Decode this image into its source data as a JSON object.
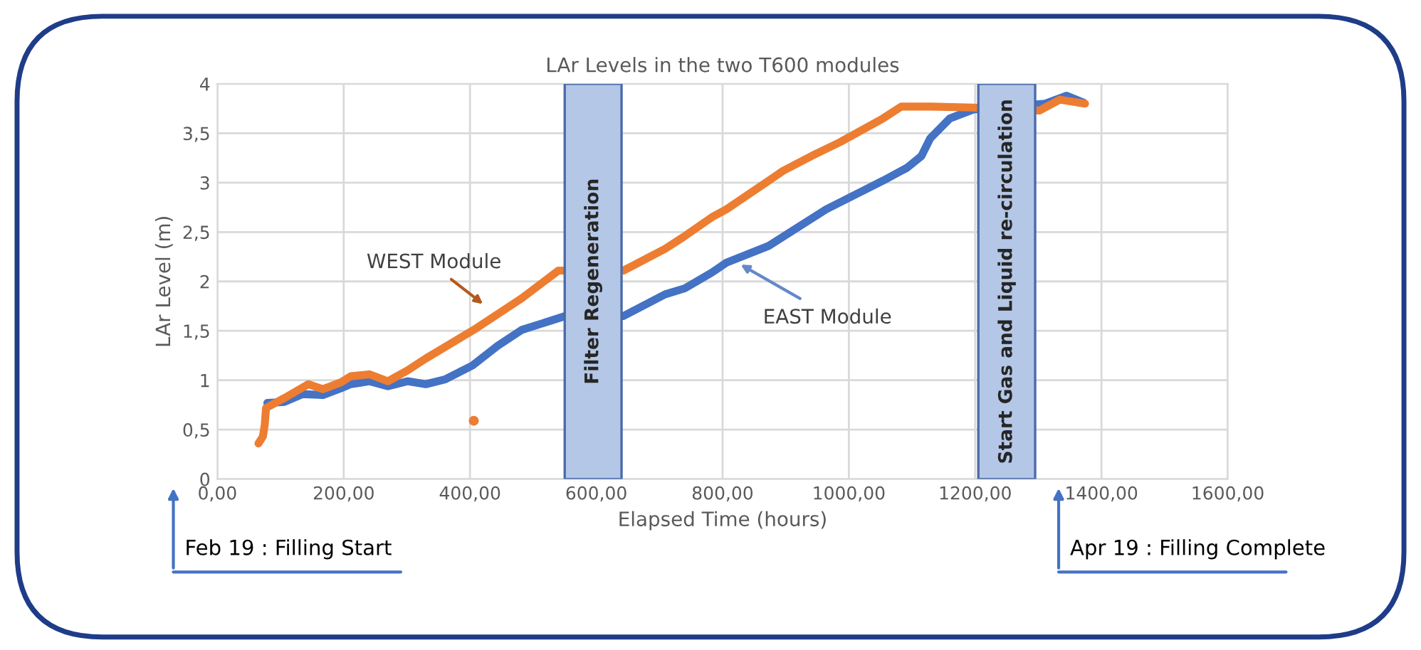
{
  "chart_data": {
    "type": "line",
    "title": "LAr Levels in the two T600 modules",
    "xlabel": "Elapsed Time (hours)",
    "ylabel": "LAr Level (m)",
    "xlim": [
      0,
      1600
    ],
    "ylim": [
      0,
      4
    ],
    "xticks": [
      {
        "value": 0,
        "label": "0,00"
      },
      {
        "value": 200,
        "label": "200,00"
      },
      {
        "value": 400,
        "label": "400,00"
      },
      {
        "value": 600,
        "label": "600,00"
      },
      {
        "value": 800,
        "label": "800,00"
      },
      {
        "value": 1000,
        "label": "1000,00"
      },
      {
        "value": 1200,
        "label": "1200,00"
      },
      {
        "value": 1400,
        "label": "1400,00"
      },
      {
        "value": 1600,
        "label": "1600,00"
      }
    ],
    "yticks": [
      0,
      {
        "value": 0.5,
        "label": "0,5"
      },
      1,
      {
        "value": 1.5,
        "label": "1,5"
      },
      2,
      {
        "value": 2.5,
        "label": "2,5"
      },
      3,
      {
        "value": 3.5,
        "label": "3,5"
      },
      4
    ],
    "grid": true,
    "legend": false,
    "series": [
      {
        "name": "EAST Module",
        "color": "#4472c4",
        "x": [
          79,
          106,
          135,
          167,
          196,
          211,
          241,
          270,
          301,
          330,
          361,
          404,
          444,
          482,
          551,
          643,
          709,
          740,
          783,
          806,
          873,
          964,
          1054,
          1092,
          1115,
          1129,
          1160,
          1197,
          1311,
          1345,
          1372
        ],
        "values": [
          0.77,
          0.78,
          0.86,
          0.85,
          0.92,
          0.96,
          0.99,
          0.94,
          0.99,
          0.96,
          1.01,
          1.15,
          1.35,
          1.51,
          1.65,
          1.65,
          1.87,
          1.93,
          2.09,
          2.19,
          2.36,
          2.73,
          3.02,
          3.15,
          3.27,
          3.45,
          3.65,
          3.74,
          3.8,
          3.88,
          3.81
        ]
      },
      {
        "name": "WEST Module",
        "color": "#ed7d31",
        "x": [
          65,
          72,
          75,
          77,
          106,
          144,
          167,
          196,
          211,
          241,
          270,
          301,
          330,
          406,
          482,
          540,
          643,
          709,
          738,
          783,
          806,
          873,
          896,
          941,
          986,
          1054,
          1083,
          1129,
          1197,
          1302,
          1334,
          1374
        ],
        "values": [
          0.36,
          0.43,
          0.55,
          0.72,
          0.82,
          0.96,
          0.91,
          0.98,
          1.04,
          1.06,
          0.99,
          1.1,
          1.22,
          1.51,
          1.83,
          2.11,
          2.11,
          2.33,
          2.45,
          2.65,
          2.73,
          3.02,
          3.12,
          3.27,
          3.41,
          3.65,
          3.77,
          3.77,
          3.76,
          3.73,
          3.84,
          3.8
        ]
      },
      {
        "type": "scatter",
        "color": "#ed7d31",
        "x": [
          406
        ],
        "values": [
          0.59
        ]
      }
    ],
    "bands": [
      {
        "axis": "x",
        "from": 550,
        "to": 640,
        "label": "Filter Regeneration",
        "color": "#b4c7e7"
      },
      {
        "axis": "x",
        "from": 1205,
        "to": 1295,
        "label": "Start Gas and Liquid re-circulation",
        "color": "#b4c7e7"
      }
    ],
    "annotations": [
      "Feb 19 : Filling Start",
      "Apr 19 : Filling Complete"
    ]
  }
}
